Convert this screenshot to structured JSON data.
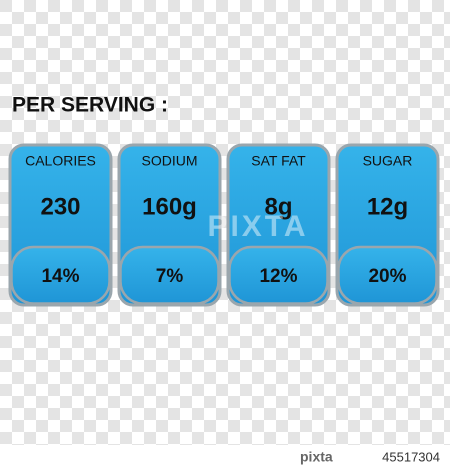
{
  "header": {
    "title": "PER SERVING :"
  },
  "items": [
    {
      "label": "CALORIES",
      "amount": "230",
      "percent": "14%"
    },
    {
      "label": "SODIUM",
      "amount": "160g",
      "percent": "7%"
    },
    {
      "label": "SAT FAT",
      "amount": "8g",
      "percent": "12%"
    },
    {
      "label": "SUGAR",
      "amount": "12g",
      "percent": "20%"
    }
  ],
  "watermark": {
    "center": "PIXTA",
    "brand": "pixta",
    "id": "45517304"
  }
}
